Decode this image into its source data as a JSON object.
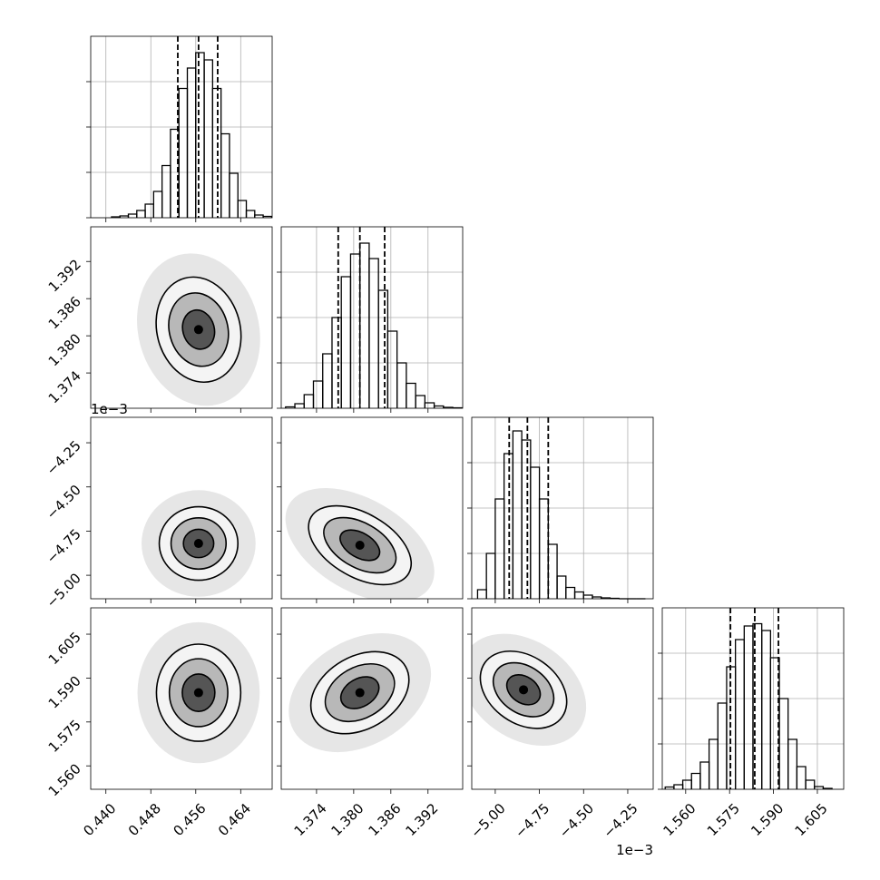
{
  "chart_data": {
    "type": "corner",
    "hist_ylim": [
      0,
      4
    ],
    "hist_yticks": [
      0,
      1,
      2,
      3
    ],
    "params": [
      {
        "lim": [
          0.4373,
          0.4696
        ],
        "ticks": [
          {
            "value": 0.44,
            "label": "0.440"
          },
          0.448,
          0.456,
          0.464
        ],
        "quantiles": [
          0.4528,
          0.4565,
          0.4599
        ],
        "bins": [
          0.441,
          0.4425,
          0.444,
          0.4455,
          0.447,
          0.4485,
          0.45,
          0.4515,
          0.453,
          0.4545,
          0.456,
          0.4575,
          0.459,
          0.4605,
          0.462,
          0.4635,
          0.465,
          0.4665,
          0.468,
          0.4695
        ],
        "counts": [
          0.02,
          0.04,
          0.08,
          0.16,
          0.3,
          0.58,
          1.15,
          1.95,
          2.85,
          3.3,
          3.64,
          3.48,
          2.85,
          1.85,
          0.98,
          0.38,
          0.16,
          0.06,
          0.03
        ]
      },
      {
        "lim": [
          1.3683,
          1.3976
        ],
        "ticks": [
          1.374,
          {
            "value": 1.38,
            "label": "1.380"
          },
          1.386,
          1.392
        ],
        "quantiles": [
          1.3775,
          1.381,
          1.385
        ],
        "bins": [
          1.369,
          1.3705,
          1.372,
          1.3735,
          1.375,
          1.3765,
          1.378,
          1.3795,
          1.381,
          1.3825,
          1.384,
          1.3855,
          1.387,
          1.3885,
          1.39,
          1.3915,
          1.393,
          1.3945,
          1.396,
          1.3975
        ],
        "counts": [
          0.03,
          0.1,
          0.3,
          0.6,
          1.2,
          2.0,
          2.9,
          3.4,
          3.64,
          3.3,
          2.6,
          1.7,
          1.0,
          0.55,
          0.28,
          0.12,
          0.05,
          0.02,
          0.01
        ]
      },
      {
        "lim": [
          -5.133,
          -4.106
        ],
        "ticks": [
          {
            "value": -5.0,
            "label": "−5.00"
          },
          {
            "value": -4.75,
            "label": "−4.75"
          },
          {
            "value": -4.5,
            "label": "−4.50"
          },
          {
            "value": -4.25,
            "label": "−4.25"
          }
        ],
        "offset": "1e−3",
        "quantiles": [
          -4.921,
          -4.818,
          -4.7
        ],
        "bins": [
          -5.1,
          -5.05,
          -5.0,
          -4.95,
          -4.9,
          -4.85,
          -4.8,
          -4.75,
          -4.7,
          -4.65,
          -4.6,
          -4.55,
          -4.5,
          -4.45,
          -4.4,
          -4.35,
          -4.3,
          -4.25,
          -4.2,
          -4.15
        ],
        "counts": [
          0.2,
          1.0,
          2.2,
          3.2,
          3.7,
          3.5,
          2.9,
          2.2,
          1.2,
          0.5,
          0.25,
          0.15,
          0.08,
          0.04,
          0.02,
          0.01,
          0,
          0,
          0
        ]
      },
      {
        "lim": [
          1.552,
          1.614
        ],
        "ticks": [
          {
            "value": 1.56,
            "label": "1.560"
          },
          1.575,
          {
            "value": 1.59,
            "label": "1.590"
          },
          1.605
        ],
        "quantiles": [
          1.5753,
          1.5836,
          1.5917
        ],
        "bins": [
          1.553,
          1.556,
          1.559,
          1.562,
          1.565,
          1.568,
          1.571,
          1.574,
          1.577,
          1.58,
          1.583,
          1.586,
          1.589,
          1.592,
          1.595,
          1.598,
          1.601,
          1.604,
          1.607,
          1.61
        ],
        "counts": [
          0.05,
          0.1,
          0.2,
          0.35,
          0.6,
          1.1,
          1.9,
          2.7,
          3.3,
          3.6,
          3.65,
          3.5,
          2.9,
          2.0,
          1.1,
          0.5,
          0.2,
          0.06,
          0.02
        ]
      }
    ],
    "pairs": [
      {
        "x": 0,
        "y": 1,
        "center": [
          0.4565,
          1.381
        ],
        "tilt": -15,
        "contours": [
          {
            "rx": 0.0074,
            "ry": 0.0086
          },
          {
            "rx": 0.0052,
            "ry": 0.006
          },
          {
            "rx": 0.0028,
            "ry": 0.0032
          }
        ]
      },
      {
        "x": 0,
        "y": 2,
        "center": [
          0.4565,
          -4.82
        ],
        "tilt": 0,
        "contours": [
          {
            "rx": 0.007,
            "ry": 0.208
          },
          {
            "rx": 0.0049,
            "ry": 0.145
          },
          {
            "rx": 0.0027,
            "ry": 0.08
          }
        ]
      },
      {
        "x": 1,
        "y": 2,
        "center": [
          1.381,
          -4.83
        ],
        "tilt": 30,
        "contours": [
          {
            "rx": 0.0091,
            "ry": 0.18
          },
          {
            "rx": 0.0064,
            "ry": 0.126
          },
          {
            "rx": 0.0035,
            "ry": 0.07
          }
        ]
      },
      {
        "x": 0,
        "y": 3,
        "center": [
          0.4565,
          1.585
        ],
        "tilt": 0,
        "contours": [
          {
            "rx": 0.0075,
            "ry": 0.0166
          },
          {
            "rx": 0.0052,
            "ry": 0.0116
          },
          {
            "rx": 0.0029,
            "ry": 0.0064
          }
        ]
      },
      {
        "x": 1,
        "y": 3,
        "center": [
          1.381,
          1.585
        ],
        "tilt": -30,
        "contours": [
          {
            "rx": 0.0085,
            "ry": 0.0124
          },
          {
            "rx": 0.006,
            "ry": 0.0087
          },
          {
            "rx": 0.0033,
            "ry": 0.0048
          }
        ]
      },
      {
        "x": 2,
        "y": 3,
        "center": [
          -4.84,
          1.586
        ],
        "tilt": 35,
        "contours": [
          {
            "rx": 0.267,
            "ry": 0.0115
          },
          {
            "rx": 0.187,
            "ry": 0.008
          },
          {
            "rx": 0.103,
            "ry": 0.0045
          }
        ]
      }
    ]
  }
}
